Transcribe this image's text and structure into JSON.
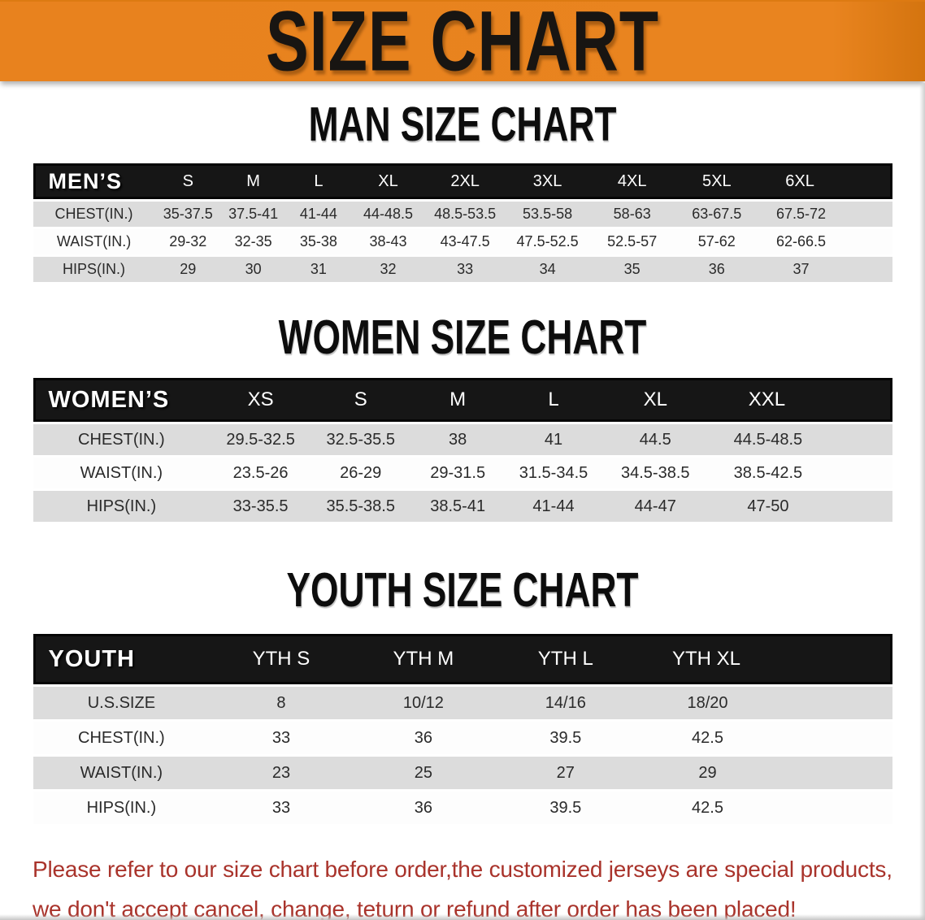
{
  "banner": {
    "title": "SIZE CHART",
    "bg_color": "#e8821e",
    "text_color": "#181512"
  },
  "sections": [
    {
      "id": "men",
      "heading": "MAN SIZE CHART",
      "group_label": "MEN’S",
      "sizes": [
        "S",
        "M",
        "L",
        "XL",
        "2XL",
        "3XL",
        "4XL",
        "5XL",
        "6XL"
      ],
      "rows": [
        {
          "label": "CHEST(IN.)",
          "values": [
            "35-37.5",
            "37.5-41",
            "41-44",
            "44-48.5",
            "48.5-53.5",
            "53.5-58",
            "58-63",
            "63-67.5",
            "67.5-72"
          ]
        },
        {
          "label": "WAIST(IN.)",
          "values": [
            "29-32",
            "32-35",
            "35-38",
            "38-43",
            "43-47.5",
            "47.5-52.5",
            "52.5-57",
            "57-62",
            "62-66.5"
          ]
        },
        {
          "label": "HIPS(IN.)",
          "values": [
            "29",
            "30",
            "31",
            "32",
            "33",
            "34",
            "35",
            "36",
            "37"
          ]
        }
      ]
    },
    {
      "id": "women",
      "heading": "WOMEN SIZE CHART",
      "group_label": "WOMEN’S",
      "sizes": [
        "XS",
        "S",
        "M",
        "L",
        "XL",
        "XXL"
      ],
      "rows": [
        {
          "label": "CHEST(IN.)",
          "values": [
            "29.5-32.5",
            "32.5-35.5",
            "38",
            "41",
            "44.5",
            "44.5-48.5"
          ]
        },
        {
          "label": "WAIST(IN.)",
          "values": [
            "23.5-26",
            "26-29",
            "29-31.5",
            "31.5-34.5",
            "34.5-38.5",
            "38.5-42.5"
          ]
        },
        {
          "label": "HIPS(IN.)",
          "values": [
            "33-35.5",
            "35.5-38.5",
            "38.5-41",
            "41-44",
            "44-47",
            "47-50"
          ]
        }
      ]
    },
    {
      "id": "youth",
      "heading": "YOUTH SIZE CHART",
      "group_label": "YOUTH",
      "sizes": [
        "YTH S",
        "YTH M",
        "YTH L",
        "YTH XL"
      ],
      "rows": [
        {
          "label": "U.S.SIZE",
          "values": [
            "8",
            "10/12",
            "14/16",
            "18/20"
          ]
        },
        {
          "label": "CHEST(IN.)",
          "values": [
            "33",
            "36",
            "39.5",
            "42.5"
          ]
        },
        {
          "label": "WAIST(IN.)",
          "values": [
            "23",
            "25",
            "27",
            "29"
          ]
        },
        {
          "label": "HIPS(IN.)",
          "values": [
            "33",
            "36",
            "39.5",
            "42.5"
          ]
        }
      ]
    }
  ],
  "disclaimer": {
    "line1": "Please refer to our size chart before order,the customized jerseys are special products,",
    "line2": "we don't accept cancel, change, teturn or refund after order has been placed!",
    "text_color": "#a9332b"
  },
  "colors": {
    "header_bar_bg": "#161616",
    "row_alt_bg": "#dcdcdc",
    "table_text": "#2a2a2a"
  }
}
